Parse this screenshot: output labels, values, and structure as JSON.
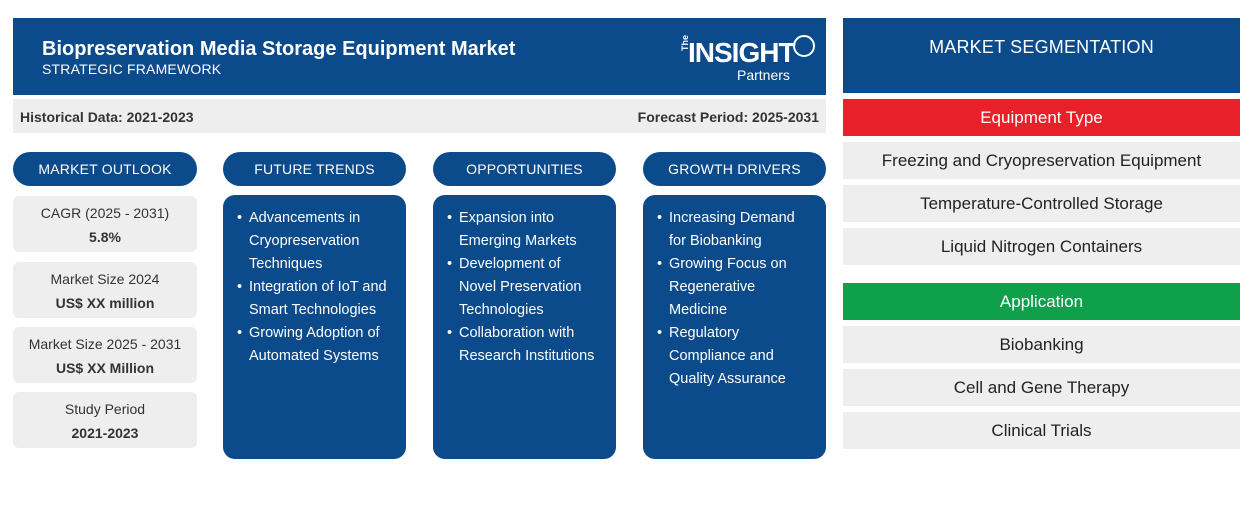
{
  "header": {
    "title": "Biopreservation Media Storage Equipment Market",
    "subtitle": "STRATEGIC FRAMEWORK",
    "logo": {
      "the": "The",
      "word": "INSIGHT",
      "partners": "Partners"
    }
  },
  "period": {
    "historical": "Historical Data: 2021-2023",
    "forecast": "Forecast Period: 2025-2031"
  },
  "columns": {
    "outlook": "MARKET OUTLOOK",
    "trends": "FUTURE TRENDS",
    "opportunities": "OPPORTUNITIES",
    "drivers": "GROWTH DRIVERS"
  },
  "outlook": [
    {
      "label": "CAGR (2025 - 2031)",
      "value": "5.8%"
    },
    {
      "label": "Market Size 2024",
      "value": "US$ XX million"
    },
    {
      "label": "Market Size 2025 - 2031",
      "value": "US$ XX Million"
    },
    {
      "label": "Study Period",
      "value": "2021-2023"
    }
  ],
  "trends": [
    [
      "Advancements in",
      "Cryopreservation",
      "Techniques"
    ],
    [
      "Integration of IoT and",
      "Smart Technologies"
    ],
    [
      "Growing Adoption of",
      "Automated Systems"
    ]
  ],
  "opportunities": [
    [
      "Expansion into",
      "Emerging Markets"
    ],
    [
      "Development of",
      "Novel Preservation",
      "Technologies"
    ],
    [
      "Collaboration with",
      "Research Institutions"
    ]
  ],
  "drivers": [
    [
      "Increasing Demand",
      "for Biobanking"
    ],
    [
      "Growing Focus on",
      "Regenerative",
      "Medicine"
    ],
    [
      "Regulatory",
      "Compliance and",
      "Quality Assurance"
    ]
  ],
  "segmentation": {
    "title": "MARKET SEGMENTATION",
    "equipment_type": {
      "label": "Equipment Type",
      "color": "#e8202a",
      "items": [
        "Freezing and Cryopreservation Equipment",
        "Temperature-Controlled Storage",
        "Liquid Nitrogen Containers"
      ]
    },
    "application": {
      "label": "Application",
      "color": "#0ea04b",
      "items": [
        "Biobanking",
        "Cell and Gene Therapy",
        "Clinical Trials"
      ]
    }
  },
  "colors": {
    "brand": "#0b4a8b",
    "panel_gray": "#eeeeee"
  }
}
